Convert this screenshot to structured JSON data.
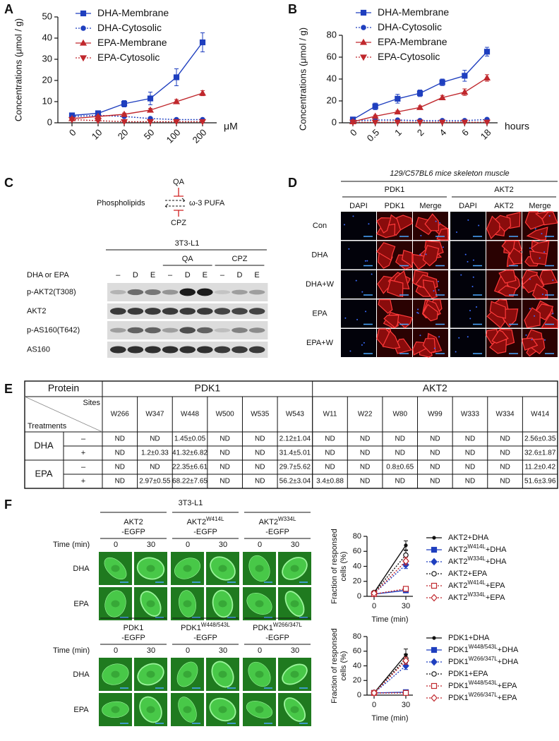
{
  "panel_labels": [
    "A",
    "B",
    "C",
    "D",
    "E",
    "F"
  ],
  "chart_data": [
    {
      "type": "line",
      "categories": [
        "0",
        "10",
        "20",
        "50",
        "100",
        "200"
      ],
      "x_unit": "μM",
      "ylabel": "Concentrations (μmol / g)",
      "ylim": [
        0,
        50
      ],
      "yticks": [
        0,
        10,
        20,
        30,
        40,
        50
      ],
      "legend": "upper center",
      "series": [
        {
          "name": "DHA-Membrane",
          "color": "#1f3fbf",
          "marker": "square",
          "dash": false,
          "values": [
            3.5,
            4.5,
            9,
            11.5,
            21.5,
            38
          ],
          "errors": [
            0.5,
            0.8,
            1.5,
            3,
            4,
            4.5
          ]
        },
        {
          "name": "DHA-Cytosolic",
          "color": "#1f3fbf",
          "marker": "circle",
          "dash": true,
          "values": [
            3,
            3.5,
            3,
            2,
            1.5,
            1.5
          ],
          "errors": [
            0.5,
            0.5,
            0.5,
            0.4,
            0.3,
            0.3
          ]
        },
        {
          "name": "EPA-Membrane",
          "color": "#c0282d",
          "marker": "triangle",
          "dash": false,
          "values": [
            2,
            3,
            4,
            6,
            10,
            14
          ],
          "errors": [
            0.4,
            0.5,
            0.6,
            0.8,
            1,
            1.2
          ]
        },
        {
          "name": "EPA-Cytosolic",
          "color": "#c0282d",
          "marker": "triangle-down",
          "dash": true,
          "values": [
            1.5,
            1,
            0.5,
            0.5,
            0.5,
            0.5
          ],
          "errors": [
            0.3,
            0.2,
            0.2,
            0.2,
            0.2,
            0.2
          ]
        }
      ]
    },
    {
      "type": "line",
      "categories": [
        "0",
        "0.5",
        "1",
        "2",
        "4",
        "6",
        "18"
      ],
      "x_unit": "hours",
      "ylabel": "Concentrations (μmol / g)",
      "ylim": [
        0,
        80
      ],
      "yticks": [
        0,
        20,
        40,
        60,
        80
      ],
      "legend": "upper left",
      "series": [
        {
          "name": "DHA-Membrane",
          "color": "#1f3fbf",
          "marker": "square",
          "dash": false,
          "values": [
            3,
            15,
            22,
            27,
            37,
            43,
            65
          ],
          "errors": [
            1,
            3,
            4,
            3,
            3,
            5,
            4
          ]
        },
        {
          "name": "DHA-Cytosolic",
          "color": "#1f3fbf",
          "marker": "circle",
          "dash": true,
          "values": [
            2,
            2.5,
            2.5,
            2,
            2,
            2,
            3
          ],
          "errors": [
            0.5,
            0.5,
            0.5,
            0.5,
            0.5,
            0.5,
            0.8
          ]
        },
        {
          "name": "EPA-Membrane",
          "color": "#c0282d",
          "marker": "triangle",
          "dash": false,
          "values": [
            1,
            6,
            10,
            14,
            23,
            28,
            41
          ],
          "errors": [
            0.5,
            1,
            1,
            1.5,
            2,
            3,
            3
          ]
        },
        {
          "name": "EPA-Cytosolic",
          "color": "#c0282d",
          "marker": "triangle-down",
          "dash": true,
          "values": [
            0.5,
            0.5,
            0.5,
            0.5,
            0.5,
            0.5,
            0.5
          ],
          "errors": [
            0.2,
            0.2,
            0.2,
            0.2,
            0.2,
            0.2,
            0.2
          ]
        }
      ]
    },
    {
      "type": "line",
      "categories": [
        "0",
        "30"
      ],
      "xlabel": "Time (min)",
      "ylabel": [
        "Fraction of responsed",
        "cells (%)"
      ],
      "ylim": [
        0,
        80
      ],
      "yticks": [
        0,
        20,
        40,
        60,
        80
      ],
      "legend": "right",
      "series": [
        {
          "name": "AKT2",
          "treatment": "+DHA",
          "color": "#111111",
          "marker": "dot",
          "dash": false,
          "values": [
            5,
            68
          ],
          "errors": [
            1,
            6
          ]
        },
        {
          "name": "AKT2",
          "mutation": "W414L",
          "treatment": "+DHA",
          "color": "#1f3fbf",
          "marker": "square",
          "dash": false,
          "values": [
            3,
            8
          ],
          "errors": [
            0.5,
            2
          ]
        },
        {
          "name": "AKT2",
          "mutation": "W334L",
          "treatment": "+DHA",
          "color": "#1f3fbf",
          "marker": "diamond",
          "dash": true,
          "values": [
            4,
            42
          ],
          "errors": [
            1,
            5
          ]
        },
        {
          "name": "AKT2",
          "treatment": "+EPA",
          "color": "#111111",
          "marker": "open-circle",
          "dash": true,
          "values": [
            5,
            55
          ],
          "errors": [
            1,
            6
          ]
        },
        {
          "name": "AKT2",
          "mutation": "W414L",
          "treatment": "+EPA",
          "color": "#c0282d",
          "marker": "open-square",
          "dash": true,
          "values": [
            3,
            10
          ],
          "errors": [
            0.5,
            2
          ]
        },
        {
          "name": "AKT2",
          "mutation": "W334L",
          "treatment": "+EPA",
          "color": "#c0282d",
          "marker": "open-diamond",
          "dash": true,
          "values": [
            4,
            47
          ],
          "errors": [
            1,
            5
          ]
        }
      ]
    },
    {
      "type": "line",
      "categories": [
        "0",
        "30"
      ],
      "xlabel": "Time (min)",
      "ylabel": [
        "Fraction of responsed",
        "cells (%)"
      ],
      "ylim": [
        0,
        80
      ],
      "yticks": [
        0,
        20,
        40,
        60,
        80
      ],
      "legend": "right",
      "series": [
        {
          "name": "PDK1",
          "treatment": "+DHA",
          "color": "#111111",
          "marker": "dot",
          "dash": false,
          "values": [
            3,
            55
          ],
          "errors": [
            0.5,
            8
          ]
        },
        {
          "name": "PDK1",
          "mutation": "W448/543L",
          "treatment": "+DHA",
          "color": "#1f3fbf",
          "marker": "square",
          "dash": false,
          "values": [
            3,
            4
          ],
          "errors": [
            0.5,
            1
          ]
        },
        {
          "name": "PDK1",
          "mutation": "W266/347L",
          "treatment": "+DHA",
          "color": "#1f3fbf",
          "marker": "diamond",
          "dash": true,
          "values": [
            3,
            40
          ],
          "errors": [
            0.5,
            5
          ]
        },
        {
          "name": "PDK1",
          "treatment": "+EPA",
          "color": "#111111",
          "marker": "open-circle",
          "dash": true,
          "values": [
            3,
            50
          ],
          "errors": [
            0.5,
            6
          ]
        },
        {
          "name": "PDK1",
          "mutation": "W448/543L",
          "treatment": "+EPA",
          "color": "#c0282d",
          "marker": "open-square",
          "dash": true,
          "values": [
            3,
            3
          ],
          "errors": [
            0.5,
            1
          ]
        },
        {
          "name": "PDK1",
          "mutation": "W266/347L",
          "treatment": "+EPA",
          "color": "#c0282d",
          "marker": "open-diamond",
          "dash": true,
          "values": [
            3,
            47
          ],
          "errors": [
            0.5,
            5
          ]
        }
      ]
    }
  ],
  "blot": {
    "scheme": {
      "left": "Phospholipids",
      "right": "ω-3 PUFA",
      "top": "QA",
      "bottom": "CPZ"
    },
    "cell_line": "3T3-L1",
    "groups": [
      "QA",
      "CPZ"
    ],
    "treatment_label": "DHA or EPA",
    "lanes": [
      "–",
      "D",
      "E",
      "–",
      "D",
      "E",
      "–",
      "D",
      "E"
    ],
    "rows": [
      "p-AKT2(T308)",
      "AKT2",
      "p-AS160(T642)",
      "AS160"
    ]
  },
  "histology": {
    "title": "129/C57BL6 mice skeleton muscle",
    "groups": [
      {
        "name": "PDK1",
        "columns": [
          "DAPI",
          "PDK1",
          "Merge"
        ]
      },
      {
        "name": "AKT2",
        "columns": [
          "DAPI",
          "AKT2",
          "Merge"
        ]
      }
    ],
    "rows": [
      "Con",
      "DHA",
      "DHA+W",
      "EPA",
      "EPA+W"
    ]
  },
  "table": {
    "protein_label": "Protein",
    "sites_label": "Sites",
    "treatments_label": "Treatments",
    "proteins": [
      {
        "name": "PDK1",
        "span": 6
      },
      {
        "name": "AKT2",
        "span": 7
      }
    ],
    "sites": [
      "W266",
      "W347",
      "W448",
      "W500",
      "W535",
      "W543",
      "W11",
      "W22",
      "W80",
      "W99",
      "W333",
      "W334",
      "W414"
    ],
    "groups": [
      {
        "name": "DHA",
        "rows": [
          {
            "sign": "–",
            "cells": [
              "ND",
              "ND",
              "1.45±0.05",
              "ND",
              "ND",
              "2.12±1.04",
              "ND",
              "ND",
              "ND",
              "ND",
              "ND",
              "ND",
              "2.56±0.35"
            ]
          },
          {
            "sign": "+",
            "cells": [
              "ND",
              "1.2±0.33",
              "41.32±6.82",
              "ND",
              "ND",
              "31.4±5.01",
              "ND",
              "ND",
              "ND",
              "ND",
              "ND",
              "ND",
              "32.6±1.87"
            ]
          }
        ]
      },
      {
        "name": "EPA",
        "rows": [
          {
            "sign": "–",
            "cells": [
              "ND",
              "ND",
              "22.35±6.61",
              "ND",
              "ND",
              "29.7±5.62",
              "ND",
              "ND",
              "0.8±0.65",
              "ND",
              "ND",
              "ND",
              "11.2±0.42"
            ]
          },
          {
            "sign": "+",
            "cells": [
              "ND",
              "2.97±0.55",
              "68.22±7.65",
              "ND",
              "ND",
              "56.2±3.04",
              "3.4±0.88",
              "ND",
              "ND",
              "ND",
              "ND",
              "ND",
              "51.6±3.96"
            ]
          }
        ]
      }
    ]
  },
  "egfp": {
    "cell_line": "3T3-L1",
    "time_label": "Time (min)",
    "times": [
      "0",
      "30"
    ],
    "rows": [
      "DHA",
      "EPA"
    ],
    "sets": [
      {
        "constructs": [
          {
            "name": "AKT2",
            "tag": "-EGFP"
          },
          {
            "name": "AKT2",
            "mutation": "W414L",
            "tag": "-EGFP"
          },
          {
            "name": "AKT2",
            "mutation": "W334L",
            "tag": "-EGFP"
          }
        ]
      },
      {
        "constructs": [
          {
            "name": "PDK1",
            "tag": "-EGFP"
          },
          {
            "name": "PDK1",
            "mutation": "W448/543L",
            "tag": "-EGFP"
          },
          {
            "name": "PDK1",
            "mutation": "W266/347L",
            "tag": "-EGFP"
          }
        ]
      }
    ]
  }
}
